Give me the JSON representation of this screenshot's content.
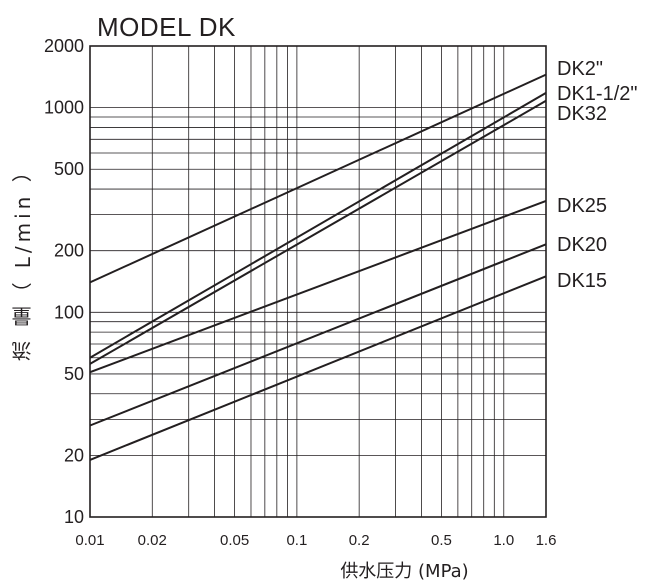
{
  "chart_data": {
    "type": "line",
    "title": "MODEL  DK",
    "xlabel": "供水压力  (MPa)",
    "ylabel": "流  量（ L/min ）",
    "xscale": "log",
    "yscale": "log",
    "xlim": [
      0.01,
      1.6
    ],
    "ylim": [
      10,
      2000
    ],
    "x_ticks": [
      {
        "v": 0.01,
        "label": "0.01"
      },
      {
        "v": 0.02,
        "label": "0.02"
      },
      {
        "v": 0.05,
        "label": "0.05"
      },
      {
        "v": 0.1,
        "label": "0.1"
      },
      {
        "v": 0.2,
        "label": "0.2"
      },
      {
        "v": 0.5,
        "label": "0.5"
      },
      {
        "v": 1.0,
        "label": "1.0"
      },
      {
        "v": 1.6,
        "label": "1.6"
      }
    ],
    "y_ticks": [
      {
        "v": 10,
        "label": "10"
      },
      {
        "v": 20,
        "label": "20"
      },
      {
        "v": 50,
        "label": "50"
      },
      {
        "v": 100,
        "label": "100"
      },
      {
        "v": 200,
        "label": "200"
      },
      {
        "v": 500,
        "label": "500"
      },
      {
        "v": 1000,
        "label": "1000"
      },
      {
        "v": 2000,
        "label": "2000"
      }
    ],
    "x_grid": [
      0.01,
      0.02,
      0.03,
      0.04,
      0.05,
      0.06,
      0.07,
      0.08,
      0.09,
      0.1,
      0.2,
      0.3,
      0.4,
      0.5,
      0.6,
      0.7,
      0.8,
      0.9,
      1.0,
      1.6
    ],
    "y_grid": [
      10,
      20,
      30,
      40,
      50,
      60,
      70,
      80,
      90,
      100,
      200,
      300,
      400,
      500,
      600,
      700,
      800,
      900,
      1000,
      2000
    ],
    "grid": true,
    "series": [
      {
        "name": "DK2\"",
        "x": [
          0.01,
          1.6
        ],
        "y": [
          140,
          1450
        ]
      },
      {
        "name": "DK1-1/2\"",
        "x": [
          0.01,
          1.6
        ],
        "y": [
          60,
          1180
        ]
      },
      {
        "name": "DK32",
        "x": [
          0.01,
          1.6
        ],
        "y": [
          56,
          1080
        ]
      },
      {
        "name": "DK25",
        "x": [
          0.01,
          1.6
        ],
        "y": [
          51,
          350
        ]
      },
      {
        "name": "DK20",
        "x": [
          0.01,
          1.6
        ],
        "y": [
          28,
          215
        ]
      },
      {
        "name": "DK15",
        "x": [
          0.01,
          1.6
        ],
        "y": [
          19,
          150
        ]
      }
    ]
  }
}
